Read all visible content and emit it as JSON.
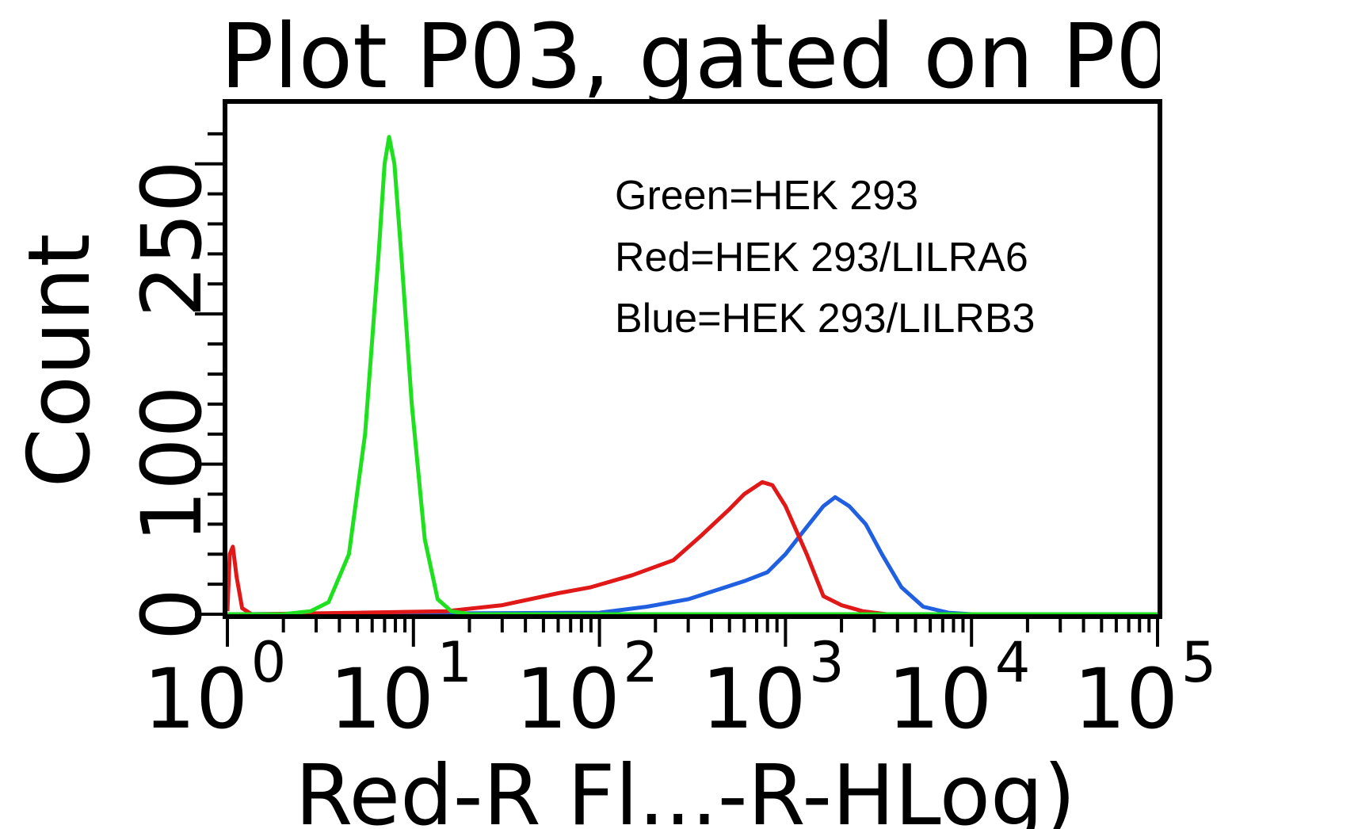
{
  "chart_data": {
    "type": "line",
    "title": "Plot P03, gated on P0",
    "xlabel": "Red-R Fl...-R-HLog)",
    "ylabel": "Count",
    "x_scale": "log",
    "xlim": [
      1,
      100000
    ],
    "ylim": [
      0,
      340
    ],
    "x_tick_labels": [
      {
        "base": "10",
        "exp": "0"
      },
      {
        "base": "10",
        "exp": "1"
      },
      {
        "base": "10",
        "exp": "2"
      },
      {
        "base": "10",
        "exp": "3"
      },
      {
        "base": "10",
        "exp": "4"
      },
      {
        "base": "10",
        "exp": "5"
      }
    ],
    "y_tick_labels": [
      "0",
      "100",
      "250"
    ],
    "legend": [
      "Green=HEK 293",
      "Red=HEK 293/LILRA6",
      "Blue=HEK 293/LILRB3"
    ],
    "legend_placement": "top-right",
    "grid": false,
    "series": [
      {
        "color": "#2060e0",
        "points": [
          [
            1.0,
            0
          ],
          [
            100,
            1
          ],
          [
            180,
            5
          ],
          [
            300,
            10
          ],
          [
            450,
            17
          ],
          [
            600,
            22
          ],
          [
            800,
            28
          ],
          [
            1000,
            40
          ],
          [
            1300,
            58
          ],
          [
            1600,
            72
          ],
          [
            1850,
            78
          ],
          [
            2200,
            72
          ],
          [
            2700,
            60
          ],
          [
            3300,
            40
          ],
          [
            4200,
            18
          ],
          [
            5500,
            5
          ],
          [
            7500,
            1
          ],
          [
            10000,
            0
          ],
          [
            100000,
            0
          ]
        ]
      },
      {
        "color": "#e01818",
        "points": [
          [
            1.0,
            2
          ],
          [
            1.03,
            40
          ],
          [
            1.07,
            45
          ],
          [
            1.12,
            25
          ],
          [
            1.2,
            4
          ],
          [
            1.35,
            0
          ],
          [
            5,
            1
          ],
          [
            15,
            2
          ],
          [
            30,
            6
          ],
          [
            60,
            14
          ],
          [
            90,
            18
          ],
          [
            150,
            26
          ],
          [
            250,
            36
          ],
          [
            350,
            52
          ],
          [
            500,
            70
          ],
          [
            600,
            80
          ],
          [
            750,
            88
          ],
          [
            850,
            86
          ],
          [
            1000,
            72
          ],
          [
            1300,
            40
          ],
          [
            1600,
            12
          ],
          [
            2000,
            6
          ],
          [
            2600,
            2
          ],
          [
            3500,
            0
          ],
          [
            100000,
            0
          ]
        ]
      },
      {
        "color": "#1ee01e",
        "points": [
          [
            1.0,
            0
          ],
          [
            2.0,
            0
          ],
          [
            2.8,
            2
          ],
          [
            3.5,
            8
          ],
          [
            4.5,
            40
          ],
          [
            5.5,
            120
          ],
          [
            6.5,
            240
          ],
          [
            7.0,
            300
          ],
          [
            7.4,
            318
          ],
          [
            7.9,
            300
          ],
          [
            8.6,
            240
          ],
          [
            9.8,
            140
          ],
          [
            11.5,
            50
          ],
          [
            13.5,
            10
          ],
          [
            16,
            2
          ],
          [
            20,
            0
          ],
          [
            100000,
            0
          ]
        ]
      }
    ]
  }
}
